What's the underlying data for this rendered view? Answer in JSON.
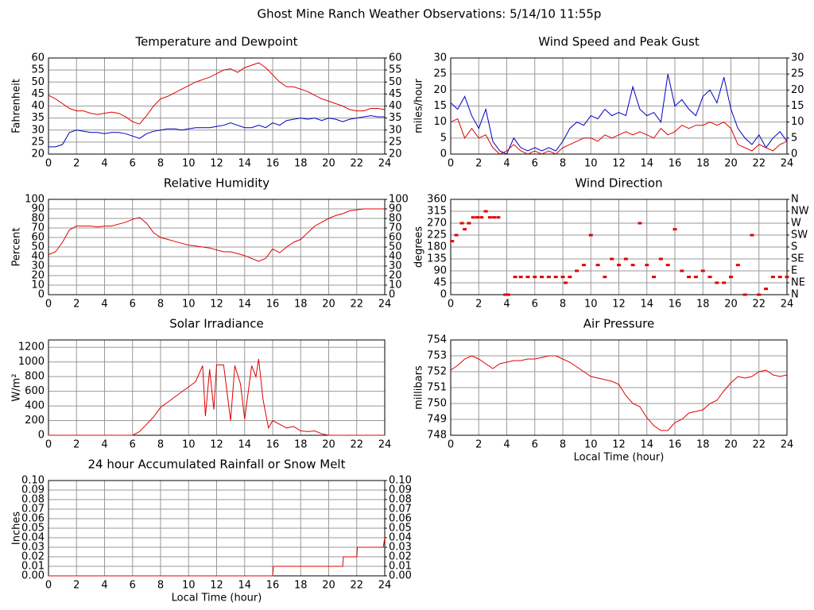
{
  "title": "Ghost Mine Ranch Weather Observations: 5/14/10 11:55p",
  "chart_data": [
    {
      "type": "line",
      "title": "Temperature and Dewpoint",
      "ylabel": "Fahrenheit",
      "x": [
        0,
        0.5,
        1,
        1.5,
        2,
        2.5,
        3,
        3.5,
        4,
        4.5,
        5,
        5.5,
        6,
        6.5,
        7,
        7.5,
        8,
        8.5,
        9,
        9.5,
        10,
        10.5,
        11,
        11.5,
        12,
        12.5,
        13,
        13.5,
        14,
        14.5,
        15,
        15.5,
        16,
        16.5,
        17,
        17.5,
        18,
        18.5,
        19,
        19.5,
        20,
        20.5,
        21,
        21.5,
        22,
        22.5,
        23,
        23.5,
        24
      ],
      "series": [
        {
          "color": "#e00000",
          "values": [
            44.5,
            43,
            41,
            39,
            38,
            38,
            37,
            36.5,
            37,
            37.5,
            37,
            35.5,
            33.5,
            32.5,
            36,
            40,
            43,
            44,
            45.5,
            47,
            48.5,
            50,
            51,
            52,
            53.5,
            55,
            55.5,
            54,
            56,
            57,
            58,
            56,
            53,
            50,
            48,
            48,
            47,
            46,
            44.5,
            43,
            42,
            41,
            40,
            38.5,
            38,
            38,
            39,
            39,
            38.5
          ]
        },
        {
          "color": "#0000c0",
          "values": [
            23,
            23,
            24,
            29,
            30,
            29.5,
            29,
            29,
            28.5,
            29,
            29,
            28.5,
            27.5,
            26.5,
            28.5,
            29.5,
            30,
            30.5,
            30.5,
            30,
            30.5,
            31,
            31,
            31,
            31.5,
            32,
            33,
            32,
            31,
            31,
            32,
            31,
            33,
            32,
            34,
            34.5,
            35,
            34.5,
            35,
            34,
            35,
            34.5,
            33.5,
            34.5,
            35,
            35.5,
            36,
            35.5,
            35.5
          ]
        }
      ],
      "xlim": [
        0,
        24
      ],
      "xticks": [
        0,
        2,
        4,
        6,
        8,
        10,
        12,
        14,
        16,
        18,
        20,
        22,
        24
      ],
      "ylim": [
        20,
        60
      ],
      "yticks": [
        20,
        25,
        30,
        35,
        40,
        45,
        50,
        55,
        60
      ],
      "y2lim": [
        20,
        60
      ],
      "y2ticks": [
        20,
        25,
        30,
        35,
        40,
        45,
        50,
        55,
        60
      ],
      "grid": true
    },
    {
      "type": "line",
      "title": "Wind Speed and Peak Gust",
      "ylabel": "miles/hour",
      "x": [
        0,
        0.5,
        1,
        1.5,
        2,
        2.5,
        3,
        3.5,
        4,
        4.5,
        5,
        5.5,
        6,
        6.5,
        7,
        7.5,
        8,
        8.5,
        9,
        9.5,
        10,
        10.5,
        11,
        11.5,
        12,
        12.5,
        13,
        13.5,
        14,
        14.5,
        15,
        15.5,
        16,
        16.5,
        17,
        17.5,
        18,
        18.5,
        19,
        19.5,
        20,
        20.5,
        21,
        21.5,
        22,
        22.5,
        23,
        23.5,
        24
      ],
      "series": [
        {
          "color": "#0000c0",
          "values": [
            16,
            14,
            18,
            12,
            8,
            14,
            4,
            1,
            0,
            5,
            2,
            1,
            2,
            1,
            2,
            1,
            4,
            8,
            10,
            9,
            12,
            11,
            14,
            12,
            13,
            12,
            21,
            14,
            12,
            13,
            10,
            25,
            15,
            17,
            14,
            12,
            18,
            20,
            16,
            24,
            14,
            8,
            5,
            3,
            6,
            2,
            5,
            7,
            4
          ]
        },
        {
          "color": "#e00000",
          "values": [
            10,
            11,
            5,
            8,
            5,
            6,
            2,
            0,
            1,
            3,
            1,
            0,
            1,
            0,
            1,
            0,
            2,
            3,
            4,
            5,
            5,
            4,
            6,
            5,
            6,
            7,
            6,
            7,
            6,
            5,
            8,
            6,
            7,
            9,
            8,
            9,
            9,
            10,
            9,
            10,
            8,
            3,
            2,
            1,
            3,
            2,
            1,
            3,
            4
          ]
        }
      ],
      "xlim": [
        0,
        24
      ],
      "xticks": [
        0,
        2,
        4,
        6,
        8,
        10,
        12,
        14,
        16,
        18,
        20,
        22,
        24
      ],
      "ylim": [
        0,
        30
      ],
      "yticks": [
        0,
        5,
        10,
        15,
        20,
        25,
        30
      ],
      "y2lim": [
        0,
        30
      ],
      "y2ticks": [
        0,
        5,
        10,
        15,
        20,
        25,
        30
      ],
      "grid": true
    },
    {
      "type": "line",
      "title": "Relative Humidity",
      "ylabel": "Percent",
      "x": [
        0,
        0.5,
        1,
        1.5,
        2,
        2.5,
        3,
        3.5,
        4,
        4.5,
        5,
        5.5,
        6,
        6.5,
        7,
        7.5,
        8,
        8.5,
        9,
        9.5,
        10,
        10.5,
        11,
        11.5,
        12,
        12.5,
        13,
        13.5,
        14,
        14.5,
        15,
        15.5,
        16,
        16.5,
        17,
        17.5,
        18,
        18.5,
        19,
        19.5,
        20,
        20.5,
        21,
        21.5,
        22,
        22.5,
        23,
        23.5,
        24
      ],
      "series": [
        {
          "color": "#e00000",
          "values": [
            42,
            45,
            55,
            68,
            72,
            72,
            72,
            71,
            72,
            72,
            74,
            76,
            79,
            81,
            75,
            65,
            60,
            58,
            56,
            54,
            52,
            51,
            50,
            49,
            47,
            45,
            45,
            43,
            41,
            38,
            35,
            38,
            48,
            44,
            50,
            55,
            58,
            65,
            72,
            76,
            80,
            83,
            85,
            88,
            89,
            90,
            90,
            90,
            90
          ]
        }
      ],
      "xlim": [
        0,
        24
      ],
      "xticks": [
        0,
        2,
        4,
        6,
        8,
        10,
        12,
        14,
        16,
        18,
        20,
        22,
        24
      ],
      "ylim": [
        0,
        100
      ],
      "yticks": [
        0,
        10,
        20,
        30,
        40,
        50,
        60,
        70,
        80,
        90,
        100
      ],
      "y2lim": [
        0,
        100
      ],
      "y2ticks": [
        0,
        10,
        20,
        30,
        40,
        50,
        60,
        70,
        80,
        90,
        100
      ],
      "grid": true
    },
    {
      "type": "scatter",
      "title": "Wind Direction",
      "ylabel": "degrees",
      "color": "#e00000",
      "x": [
        0.1,
        0.4,
        0.8,
        1,
        1.3,
        1.6,
        1.9,
        2.2,
        2.5,
        2.8,
        3.1,
        3.4,
        3.9,
        4.1,
        4.6,
        5,
        5.5,
        6,
        6.5,
        7,
        7.5,
        8,
        8.2,
        8.5,
        9,
        9.5,
        10,
        10.5,
        11,
        11.5,
        12,
        12.5,
        13,
        13.5,
        14,
        14.5,
        15,
        15.5,
        16,
        16.5,
        17,
        17.5,
        18,
        18.5,
        19,
        19.5,
        20,
        20.5,
        21,
        21.5,
        22,
        22.5,
        23,
        23.5,
        24
      ],
      "values": [
        202,
        225,
        270,
        247,
        270,
        292,
        292,
        292,
        315,
        292,
        292,
        292,
        0,
        0,
        67,
        67,
        67,
        67,
        67,
        67,
        67,
        67,
        45,
        67,
        90,
        112,
        225,
        112,
        67,
        135,
        112,
        135,
        112,
        270,
        112,
        67,
        135,
        112,
        247,
        90,
        67,
        67,
        90,
        67,
        45,
        45,
        67,
        112,
        0,
        225,
        0,
        22,
        67,
        67,
        67
      ],
      "xlim": [
        0,
        24
      ],
      "xticks": [
        0,
        2,
        4,
        6,
        8,
        10,
        12,
        14,
        16,
        18,
        20,
        22,
        24
      ],
      "ylim": [
        0,
        360
      ],
      "yticks": [
        0,
        45,
        90,
        135,
        180,
        225,
        270,
        315,
        360
      ],
      "y2lim": [
        0,
        360
      ],
      "y2ticks": [
        {
          "value": 0,
          "label": "N"
        },
        {
          "value": 45,
          "label": "NE"
        },
        {
          "value": 90,
          "label": "E"
        },
        {
          "value": 135,
          "label": "SE"
        },
        {
          "value": 180,
          "label": "S"
        },
        {
          "value": 225,
          "label": "SW"
        },
        {
          "value": 270,
          "label": "W"
        },
        {
          "value": 315,
          "label": "NW"
        },
        {
          "value": 360,
          "label": "N"
        }
      ],
      "grid": true
    },
    {
      "type": "line",
      "title": "Solar Irradiance",
      "ylabel": "W/m²",
      "x": [
        0,
        6,
        6.5,
        7,
        7.5,
        8,
        8.5,
        9,
        9.5,
        10,
        10.5,
        11,
        11.2,
        11.5,
        11.8,
        12,
        12.5,
        13,
        13.3,
        13.7,
        14,
        14.5,
        14.8,
        15,
        15.3,
        15.7,
        16,
        16.5,
        17,
        17.5,
        18,
        18.5,
        19,
        19.5,
        20,
        24
      ],
      "series": [
        {
          "color": "#e00000",
          "values": [
            0,
            0,
            50,
            150,
            250,
            380,
            450,
            520,
            590,
            660,
            730,
            950,
            260,
            900,
            350,
            960,
            960,
            200,
            950,
            700,
            220,
            950,
            800,
            1040,
            500,
            100,
            200,
            150,
            100,
            120,
            60,
            50,
            60,
            20,
            0,
            0
          ]
        }
      ],
      "xlim": [
        0,
        24
      ],
      "xticks": [
        0,
        2,
        4,
        6,
        8,
        10,
        12,
        14,
        16,
        18,
        20,
        22,
        24
      ],
      "ylim": [
        0,
        1300
      ],
      "yticks": [
        0,
        200,
        400,
        600,
        800,
        1000,
        1200
      ],
      "grid": true
    },
    {
      "type": "line",
      "title": "Air Pressure",
      "ylabel": "millibars",
      "xlabel": "Local Time (hour)",
      "x": [
        0,
        0.5,
        1,
        1.5,
        2,
        2.5,
        3,
        3.5,
        4,
        4.5,
        5,
        5.5,
        6,
        6.5,
        7,
        7.5,
        8,
        8.5,
        9,
        9.5,
        10,
        10.5,
        11,
        11.5,
        12,
        12.5,
        13,
        13.5,
        14,
        14.5,
        15,
        15.5,
        16,
        16.5,
        17,
        17.5,
        18,
        18.5,
        19,
        19.5,
        20,
        20.5,
        21,
        21.5,
        22,
        22.5,
        23,
        23.5,
        24
      ],
      "series": [
        {
          "color": "#e00000",
          "values": [
            752.1,
            752.4,
            752.8,
            753.0,
            752.8,
            752.5,
            752.2,
            752.5,
            752.6,
            752.7,
            752.7,
            752.8,
            752.8,
            752.9,
            753.0,
            753.0,
            752.8,
            752.6,
            752.3,
            752.0,
            751.7,
            751.6,
            751.5,
            751.4,
            751.2,
            750.5,
            750.0,
            749.8,
            749.1,
            748.6,
            748.3,
            748.3,
            748.8,
            749.0,
            749.4,
            749.5,
            749.6,
            750.0,
            750.2,
            750.8,
            751.3,
            751.7,
            751.6,
            751.7,
            752.0,
            752.1,
            751.8,
            751.7,
            751.8
          ]
        }
      ],
      "xlim": [
        0,
        24
      ],
      "xticks": [
        0,
        2,
        4,
        6,
        8,
        10,
        12,
        14,
        16,
        18,
        20,
        22,
        24
      ],
      "ylim": [
        748,
        754
      ],
      "yticks": [
        748,
        749,
        750,
        751,
        752,
        753,
        754
      ],
      "grid": true
    },
    {
      "type": "line",
      "title": "24 hour Accumulated Rainfall or Snow Melt",
      "ylabel": "Inches",
      "xlabel": "Local Time (hour)",
      "x": [
        0,
        16,
        16.05,
        21,
        21.05,
        22,
        22.05,
        23.9,
        24
      ],
      "series": [
        {
          "color": "#e00000",
          "values": [
            0,
            0,
            0.01,
            0.01,
            0.02,
            0.02,
            0.03,
            0.03,
            0.04
          ]
        }
      ],
      "xlim": [
        0,
        24
      ],
      "xticks": [
        0,
        2,
        4,
        6,
        8,
        10,
        12,
        14,
        16,
        18,
        20,
        22,
        24
      ],
      "ylim": [
        0,
        0.1
      ],
      "yticks": [
        {
          "value": 0,
          "label": "0.00"
        },
        {
          "value": 0.01,
          "label": "0.01"
        },
        {
          "value": 0.02,
          "label": "0.02"
        },
        {
          "value": 0.03,
          "label": "0.03"
        },
        {
          "value": 0.04,
          "label": "0.04"
        },
        {
          "value": 0.05,
          "label": "0.05"
        },
        {
          "value": 0.06,
          "label": "0.06"
        },
        {
          "value": 0.07,
          "label": "0.07"
        },
        {
          "value": 0.08,
          "label": "0.08"
        },
        {
          "value": 0.09,
          "label": "0.09"
        },
        {
          "value": 0.1,
          "label": "0.10"
        }
      ],
      "y2lim": [
        0,
        0.1
      ],
      "y2ticks": [
        {
          "value": 0,
          "label": "0.00"
        },
        {
          "value": 0.01,
          "label": "0.01"
        },
        {
          "value": 0.02,
          "label": "0.02"
        },
        {
          "value": 0.03,
          "label": "0.03"
        },
        {
          "value": 0.04,
          "label": "0.04"
        },
        {
          "value": 0.05,
          "label": "0.05"
        },
        {
          "value": 0.06,
          "label": "0.06"
        },
        {
          "value": 0.07,
          "label": "0.07"
        },
        {
          "value": 0.08,
          "label": "0.08"
        },
        {
          "value": 0.09,
          "label": "0.09"
        },
        {
          "value": 0.1,
          "label": "0.10"
        }
      ],
      "grid": true
    }
  ]
}
